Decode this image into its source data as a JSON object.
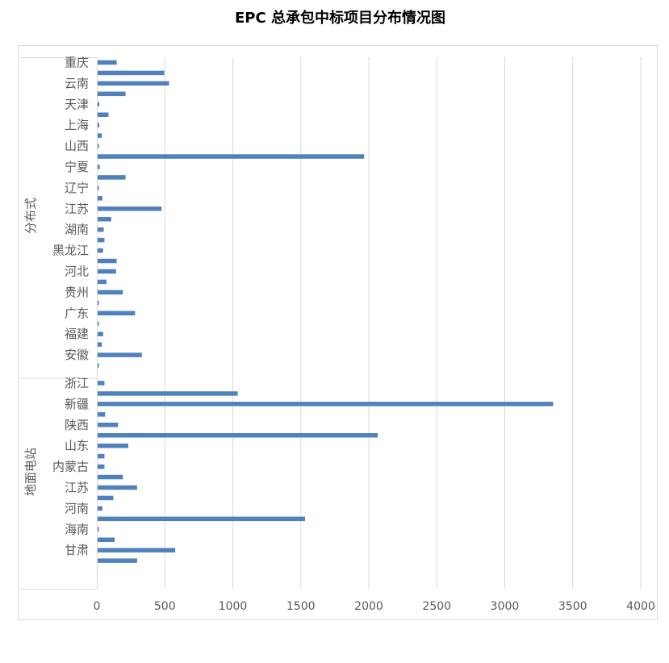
{
  "chart_data": {
    "type": "bar",
    "orientation": "horizontal",
    "title": "EPC 总承包中标项目分布情况图",
    "xlim": [
      0,
      4000
    ],
    "x_ticks": [
      "0",
      "500",
      "1000",
      "1500",
      "2000",
      "2500",
      "3000",
      "3500",
      "4000"
    ],
    "grid": "vertical",
    "legend": "none",
    "bar_color": "#4f81bd",
    "groups": [
      {
        "name": "分布式",
        "rows": [
          {
            "label": "重庆",
            "value": 140
          },
          {
            "label": "",
            "value": 490
          },
          {
            "label": "云南",
            "value": 525
          },
          {
            "label": "",
            "value": 205
          },
          {
            "label": "天津",
            "value": 12
          },
          {
            "label": "",
            "value": 80
          },
          {
            "label": "上海",
            "value": 12
          },
          {
            "label": "",
            "value": 30
          },
          {
            "label": "山西",
            "value": 8
          },
          {
            "label": "",
            "value": 1960
          },
          {
            "label": "宁夏",
            "value": 15
          },
          {
            "label": "",
            "value": 205
          },
          {
            "label": "辽宁",
            "value": 8
          },
          {
            "label": "",
            "value": 35
          },
          {
            "label": "江苏",
            "value": 470
          },
          {
            "label": "",
            "value": 100
          },
          {
            "label": "湖南",
            "value": 45
          },
          {
            "label": "",
            "value": 50
          },
          {
            "label": "黑龙江",
            "value": 40
          },
          {
            "label": "",
            "value": 140
          },
          {
            "label": "河北",
            "value": 135
          },
          {
            "label": "",
            "value": 65
          },
          {
            "label": "贵州",
            "value": 185
          },
          {
            "label": "",
            "value": 8
          },
          {
            "label": "广东",
            "value": 275
          },
          {
            "label": "",
            "value": 8
          },
          {
            "label": "福建",
            "value": 40
          },
          {
            "label": "",
            "value": 30
          },
          {
            "label": "安徽",
            "value": 325
          },
          {
            "label": "",
            "value": 8
          }
        ]
      },
      {
        "name": "地面电站",
        "rows": [
          {
            "label": "浙江",
            "value": 50
          },
          {
            "label": "",
            "value": 1030
          },
          {
            "label": "新疆",
            "value": 3350
          },
          {
            "label": "",
            "value": 55
          },
          {
            "label": "陕西",
            "value": 150
          },
          {
            "label": "",
            "value": 2060
          },
          {
            "label": "山东",
            "value": 225
          },
          {
            "label": "",
            "value": 50
          },
          {
            "label": "内蒙古",
            "value": 50
          },
          {
            "label": "",
            "value": 185
          },
          {
            "label": "江苏",
            "value": 290
          },
          {
            "label": "",
            "value": 115
          },
          {
            "label": "河南",
            "value": 35
          },
          {
            "label": "",
            "value": 1525
          },
          {
            "label": "海南",
            "value": 8
          },
          {
            "label": "",
            "value": 125
          },
          {
            "label": "甘肃",
            "value": 570
          },
          {
            "label": "",
            "value": 290
          }
        ]
      }
    ]
  }
}
